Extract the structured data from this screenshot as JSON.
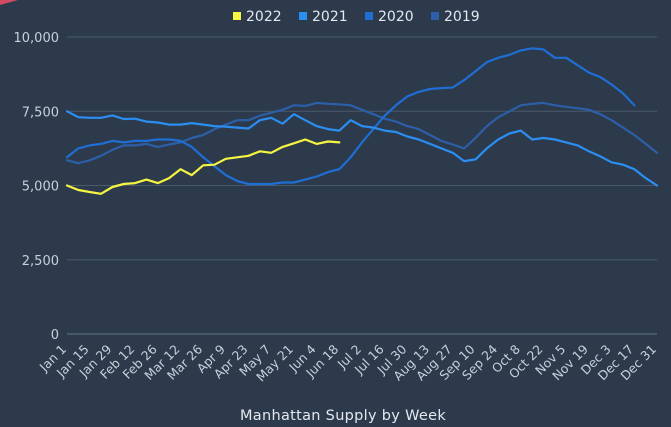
{
  "chart_data": {
    "type": "line",
    "title": "",
    "xlabel": "Manhattan Supply by Week",
    "ylabel": "",
    "ylim": [
      0,
      10000
    ],
    "yticks": [
      0,
      2500,
      5000,
      7500,
      10000
    ],
    "ytick_labels": [
      "0",
      "2,500",
      "5,000",
      "7,500",
      "10,000"
    ],
    "grid": "horizontal",
    "legend_position": "top",
    "x_tick_labels": [
      "Jan 1",
      "Jan 15",
      "Jan 29",
      "Feb 12",
      "Feb 26",
      "Mar 12",
      "Mar 26",
      "Apr 9",
      "Apr 23",
      "May 7",
      "May 21",
      "Jun 4",
      "Jun 18",
      "Jul 2",
      "Jul 16",
      "Jul 30",
      "Aug 13",
      "Aug 27",
      "Sep 10",
      "Sep 24",
      "Oct 8",
      "Oct 22",
      "Nov 5",
      "Nov 19",
      "Dec 3",
      "Dec 17",
      "Dec 31"
    ],
    "series": [
      {
        "name": "2022",
        "color": "#f5f542",
        "x": [
          0,
          1,
          2,
          3,
          4,
          5,
          6,
          7,
          8,
          9,
          10,
          11,
          12,
          13,
          14,
          15,
          16,
          17,
          18,
          19,
          20,
          21,
          22,
          23,
          24
        ],
        "values": [
          5000,
          4850,
          4780,
          4720,
          4950,
          5050,
          5080,
          5200,
          5080,
          5250,
          5550,
          5350,
          5680,
          5700,
          5900,
          5950,
          6000,
          6150,
          6100,
          6300,
          6420,
          6550,
          6400,
          6480,
          6450
        ]
      },
      {
        "name": "2021",
        "color": "#2b8ef0",
        "x": [
          0,
          1,
          2,
          3,
          4,
          5,
          6,
          7,
          8,
          9,
          10,
          11,
          12,
          13,
          14,
          15,
          16,
          17,
          18,
          19,
          20,
          21,
          22,
          23,
          24,
          25,
          26,
          27,
          28,
          29,
          30,
          31,
          32,
          33,
          34,
          35,
          36,
          37,
          38,
          39,
          40,
          41,
          42,
          43,
          44,
          45,
          46,
          47,
          48,
          49,
          50,
          51,
          52
        ],
        "values": [
          7500,
          7300,
          7280,
          7280,
          7360,
          7240,
          7250,
          7150,
          7120,
          7050,
          7050,
          7100,
          7050,
          7000,
          6980,
          6950,
          6920,
          7200,
          7280,
          7080,
          7400,
          7200,
          7000,
          6900,
          6850,
          7200,
          7000,
          6950,
          6850,
          6800,
          6650,
          6550,
          6400,
          6250,
          6100,
          5820,
          5880,
          6250,
          6550,
          6750,
          6850,
          6550,
          6600,
          6550,
          6450,
          6350,
          6150,
          5980,
          5780,
          5700,
          5550,
          5250,
          5000
        ]
      },
      {
        "name": "2020",
        "color": "#1f6ed4",
        "x": [
          0,
          1,
          2,
          3,
          4,
          5,
          6,
          7,
          8,
          9,
          10,
          11,
          12,
          13,
          14,
          15,
          16,
          17,
          18,
          19,
          20,
          21,
          22,
          23,
          24,
          25,
          26,
          27,
          28,
          29,
          30,
          31,
          32,
          33,
          34,
          35,
          36,
          37,
          38,
          39,
          40,
          41,
          42,
          43,
          44,
          45,
          46,
          47,
          48,
          49,
          50
        ],
        "values": [
          5950,
          6250,
          6350,
          6400,
          6500,
          6450,
          6500,
          6500,
          6550,
          6550,
          6500,
          6300,
          5950,
          5650,
          5350,
          5150,
          5050,
          5050,
          5050,
          5100,
          5100,
          5200,
          5300,
          5450,
          5550,
          5950,
          6450,
          6900,
          7350,
          7700,
          8000,
          8150,
          8250,
          8280,
          8300,
          8550,
          8850,
          9150,
          9300,
          9400,
          9550,
          9620,
          9580,
          9300,
          9300,
          9050,
          8800,
          8650,
          8400,
          8100,
          7700
        ]
      },
      {
        "name": "2019",
        "color": "#2c5fa8",
        "x": [
          0,
          1,
          2,
          3,
          4,
          5,
          6,
          7,
          8,
          9,
          10,
          11,
          12,
          13,
          14,
          15,
          16,
          17,
          18,
          19,
          20,
          21,
          22,
          23,
          24,
          25,
          26,
          27,
          28,
          29,
          30,
          31,
          32,
          33,
          34,
          35,
          36,
          37,
          38,
          39,
          40,
          41,
          42,
          43,
          44,
          45,
          46,
          47,
          48,
          49,
          50,
          51,
          52
        ],
        "values": [
          5850,
          5750,
          5850,
          6000,
          6200,
          6350,
          6350,
          6400,
          6300,
          6380,
          6450,
          6600,
          6700,
          6900,
          7050,
          7200,
          7200,
          7350,
          7450,
          7550,
          7700,
          7680,
          7780,
          7750,
          7730,
          7700,
          7550,
          7400,
          7250,
          7150,
          7000,
          6900,
          6700,
          6500,
          6380,
          6250,
          6600,
          7000,
          7300,
          7500,
          7700,
          7750,
          7780,
          7700,
          7650,
          7600,
          7550,
          7400,
          7200,
          6950,
          6700,
          6400,
          6100
        ]
      }
    ]
  }
}
